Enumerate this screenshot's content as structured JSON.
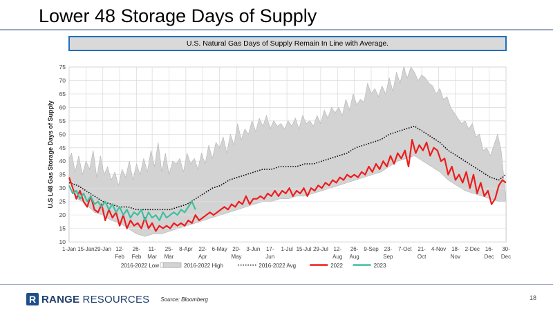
{
  "slide": {
    "title": "Lower 48 Storage Days of Supply",
    "banner": "U.S. Natural Gas Days of Supply Remain In Line with Average.",
    "logo_bold": "RANGE",
    "logo_light": " RESOURCES",
    "logo_mark": "R",
    "source": "Source: Bloomberg",
    "page_number": "18"
  },
  "chart_data": {
    "type": "line",
    "title": "",
    "xlabel": "",
    "ylabel": "U.S L48 Gas Storage Days of Supply",
    "ylim": [
      10,
      75
    ],
    "yticks": [
      10,
      15,
      20,
      25,
      30,
      35,
      40,
      45,
      50,
      55,
      60,
      65,
      70,
      75
    ],
    "xlim_day": [
      1,
      364
    ],
    "grid": true,
    "legend_position": "bottom",
    "xticks": [
      {
        "day": 1,
        "line1": "1-Jan",
        "line2": ""
      },
      {
        "day": 15,
        "line1": "15-Jan",
        "line2": ""
      },
      {
        "day": 29,
        "line1": "29-Jan",
        "line2": ""
      },
      {
        "day": 43,
        "line1": "12-",
        "line2": "Feb"
      },
      {
        "day": 57,
        "line1": "26-",
        "line2": "Feb"
      },
      {
        "day": 70,
        "line1": "11-",
        "line2": "Mar"
      },
      {
        "day": 84,
        "line1": "25-",
        "line2": "Mar"
      },
      {
        "day": 98,
        "line1": "8-Apr",
        "line2": ""
      },
      {
        "day": 112,
        "line1": "22-",
        "line2": "Apr"
      },
      {
        "day": 126,
        "line1": "6-May",
        "line2": ""
      },
      {
        "day": 140,
        "line1": "20-",
        "line2": "May"
      },
      {
        "day": 154,
        "line1": "3-Jun",
        "line2": ""
      },
      {
        "day": 168,
        "line1": "17-",
        "line2": "Jun"
      },
      {
        "day": 182,
        "line1": "1-Jul",
        "line2": ""
      },
      {
        "day": 196,
        "line1": "15-Jul",
        "line2": ""
      },
      {
        "day": 210,
        "line1": "29-Jul",
        "line2": ""
      },
      {
        "day": 224,
        "line1": "12-",
        "line2": "Aug"
      },
      {
        "day": 238,
        "line1": "26-",
        "line2": "Aug"
      },
      {
        "day": 252,
        "line1": "9-Sep",
        "line2": ""
      },
      {
        "day": 266,
        "line1": "23-",
        "line2": "Sep"
      },
      {
        "day": 280,
        "line1": "7-Oct",
        "line2": ""
      },
      {
        "day": 294,
        "line1": "21-",
        "line2": "Oct"
      },
      {
        "day": 308,
        "line1": "4-Nov",
        "line2": ""
      },
      {
        "day": 322,
        "line1": "18-",
        "line2": "Nov"
      },
      {
        "day": 336,
        "line1": "2-Dec",
        "line2": ""
      },
      {
        "day": 350,
        "line1": "16-",
        "line2": "Dec"
      },
      {
        "day": 364,
        "line1": "30-",
        "line2": "Dec"
      }
    ],
    "series": [
      {
        "name": "2016-2022 Low",
        "kind": "band-low",
        "color": "#ffffff",
        "x": [
          1,
          8,
          15,
          22,
          29,
          36,
          43,
          50,
          57,
          64,
          71,
          78,
          85,
          92,
          99,
          106,
          113,
          120,
          127,
          134,
          141,
          148,
          155,
          162,
          169,
          176,
          183,
          190,
          197,
          204,
          211,
          218,
          225,
          232,
          239,
          246,
          253,
          260,
          267,
          274,
          281,
          288,
          295,
          302,
          309,
          316,
          323,
          330,
          337,
          344,
          351,
          358,
          364
        ],
        "values": [
          33,
          26,
          24,
          21,
          20,
          18,
          17,
          15,
          13,
          12,
          13,
          13,
          14,
          15,
          16,
          17,
          18,
          19,
          20,
          21,
          22,
          23,
          24,
          25,
          25,
          26,
          26,
          27,
          27,
          28,
          29,
          30,
          31,
          32,
          33,
          34,
          35,
          36,
          38,
          40,
          41,
          42,
          40,
          38,
          36,
          33,
          31,
          29,
          28,
          27,
          26,
          25,
          25
        ]
      },
      {
        "name": "2016-2022 High",
        "kind": "band-high",
        "color": "#d3d3d3",
        "x": [
          1,
          3,
          6,
          9,
          12,
          15,
          18,
          21,
          24,
          27,
          30,
          33,
          36,
          39,
          42,
          45,
          48,
          51,
          54,
          57,
          60,
          63,
          66,
          69,
          72,
          75,
          78,
          81,
          84,
          87,
          90,
          93,
          96,
          99,
          102,
          105,
          108,
          111,
          114,
          117,
          120,
          123,
          126,
          129,
          132,
          135,
          138,
          141,
          144,
          147,
          150,
          153,
          156,
          159,
          162,
          165,
          168,
          171,
          174,
          177,
          180,
          183,
          186,
          189,
          192,
          195,
          198,
          201,
          204,
          207,
          210,
          213,
          216,
          219,
          222,
          225,
          228,
          231,
          234,
          237,
          240,
          243,
          246,
          249,
          252,
          255,
          258,
          261,
          264,
          267,
          270,
          273,
          276,
          279,
          282,
          285,
          288,
          291,
          294,
          297,
          300,
          303,
          306,
          309,
          312,
          315,
          318,
          321,
          324,
          327,
          330,
          333,
          336,
          339,
          342,
          345,
          348,
          351,
          354,
          357,
          360,
          364
        ],
        "values": [
          41,
          43,
          36,
          42,
          35,
          40,
          37,
          44,
          34,
          42,
          35,
          38,
          33,
          36,
          31,
          37,
          34,
          40,
          33,
          39,
          35,
          41,
          36,
          44,
          38,
          47,
          36,
          43,
          35,
          40,
          39,
          41,
          36,
          43,
          39,
          41,
          37,
          43,
          39,
          46,
          41,
          47,
          45,
          49,
          43,
          50,
          46,
          54,
          48,
          52,
          50,
          55,
          51,
          56,
          53,
          57,
          52,
          55,
          53,
          54,
          52,
          55,
          53,
          56,
          52,
          57,
          54,
          55,
          53,
          57,
          54,
          59,
          56,
          60,
          58,
          60,
          57,
          63,
          59,
          65,
          61,
          63,
          62,
          69,
          65,
          67,
          64,
          68,
          65,
          71,
          66,
          73,
          69,
          75,
          71,
          75,
          73,
          70,
          72,
          71,
          69,
          68,
          65,
          67,
          63,
          64,
          60,
          58,
          56,
          54,
          55,
          52,
          54,
          49,
          50,
          44,
          45,
          42,
          46,
          50,
          44,
          26
        ]
      },
      {
        "name": "2016-2022 Avg",
        "kind": "dotted",
        "color": "#000000",
        "x": [
          1,
          8,
          15,
          22,
          29,
          36,
          43,
          50,
          57,
          64,
          71,
          78,
          85,
          92,
          99,
          106,
          113,
          120,
          127,
          134,
          141,
          148,
          155,
          162,
          169,
          176,
          183,
          190,
          197,
          204,
          211,
          218,
          225,
          232,
          239,
          246,
          253,
          260,
          267,
          274,
          281,
          288,
          295,
          302,
          309,
          316,
          323,
          330,
          337,
          344,
          351,
          358,
          364
        ],
        "values": [
          32,
          31,
          29,
          27,
          25,
          24,
          23,
          23,
          22,
          22,
          22,
          22,
          22,
          23,
          24,
          26,
          28,
          30,
          31,
          33,
          34,
          35,
          36,
          37,
          37,
          38,
          38,
          38,
          39,
          39,
          40,
          41,
          42,
          43,
          45,
          46,
          47,
          48,
          50,
          51,
          52,
          53,
          51,
          49,
          47,
          44,
          42,
          40,
          38,
          36,
          34,
          33,
          35
        ]
      },
      {
        "name": "2022",
        "kind": "solid",
        "color": "#ee1c1c",
        "x": [
          1,
          4,
          7,
          10,
          13,
          16,
          19,
          22,
          25,
          28,
          31,
          34,
          37,
          40,
          43,
          46,
          49,
          52,
          55,
          58,
          61,
          64,
          67,
          70,
          73,
          76,
          79,
          82,
          85,
          88,
          91,
          94,
          97,
          100,
          103,
          106,
          109,
          112,
          115,
          118,
          121,
          124,
          127,
          130,
          133,
          136,
          139,
          142,
          145,
          148,
          151,
          154,
          157,
          160,
          163,
          166,
          169,
          172,
          175,
          178,
          181,
          184,
          187,
          190,
          193,
          196,
          199,
          202,
          205,
          208,
          211,
          214,
          217,
          220,
          223,
          226,
          229,
          232,
          235,
          238,
          241,
          244,
          247,
          250,
          253,
          256,
          259,
          262,
          265,
          268,
          271,
          274,
          277,
          280,
          283,
          286,
          289,
          292,
          295,
          298,
          301,
          304,
          307,
          310,
          313,
          316,
          319,
          322,
          325,
          328,
          331,
          334,
          337,
          340,
          343,
          346,
          349,
          352,
          355,
          358,
          361,
          364
        ],
        "values": [
          34,
          30,
          26,
          29,
          25,
          23,
          27,
          22,
          21,
          24,
          18,
          22,
          19,
          21,
          16,
          20,
          15,
          18,
          16,
          17,
          15,
          19,
          15,
          17,
          14,
          16,
          15,
          16,
          15,
          17,
          16,
          17,
          16,
          18,
          17,
          20,
          18,
          19,
          20,
          21,
          20,
          21,
          22,
          23,
          22,
          24,
          23,
          25,
          24,
          27,
          24,
          26,
          26,
          27,
          26,
          28,
          27,
          29,
          27,
          29,
          28,
          30,
          27,
          29,
          28,
          30,
          27,
          30,
          29,
          31,
          30,
          32,
          31,
          33,
          32,
          34,
          33,
          35,
          34,
          35,
          34,
          36,
          35,
          38,
          36,
          39,
          37,
          40,
          38,
          42,
          39,
          43,
          41,
          44,
          38,
          48,
          43,
          46,
          44,
          47,
          42,
          45,
          44,
          40,
          41,
          35,
          38,
          33,
          35,
          32,
          36,
          30,
          35,
          28,
          32,
          27,
          29,
          24,
          26,
          31,
          33,
          32
        ]
      },
      {
        "name": "2023",
        "kind": "solid",
        "color": "#3dbf9f",
        "x": [
          1,
          4,
          7,
          10,
          13,
          16,
          19,
          22,
          25,
          28,
          31,
          34,
          37,
          40,
          43,
          46,
          49,
          52,
          55,
          58,
          61,
          64,
          67,
          70,
          73,
          76,
          79,
          82,
          85,
          88,
          91,
          94,
          97,
          100,
          103,
          106
        ],
        "values": [
          31,
          28,
          29,
          26,
          28,
          25,
          27,
          24,
          25,
          23,
          25,
          22,
          24,
          21,
          23,
          20,
          22,
          19,
          21,
          20,
          22,
          18,
          21,
          19,
          20,
          18,
          21,
          19,
          20,
          21,
          20,
          22,
          21,
          23,
          25,
          22
        ]
      }
    ]
  }
}
